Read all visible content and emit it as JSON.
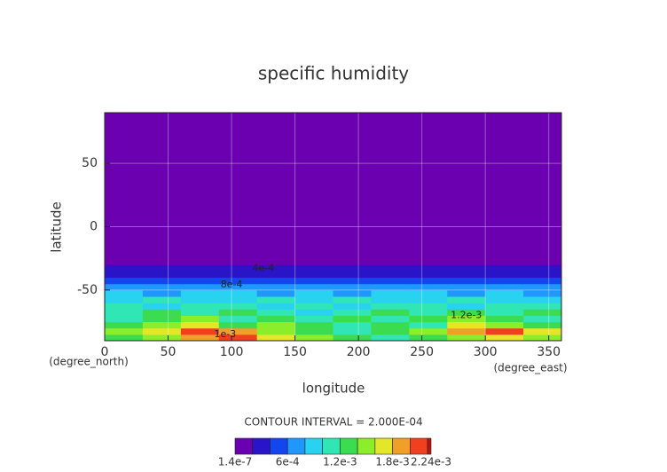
{
  "chart_data": {
    "type": "contour",
    "title": "specific humidity",
    "x_label": "longitude",
    "y_label": "latitude",
    "x_unit": "(degree_east)",
    "y_unit": "(degree_north)",
    "contour_interval_text": "CONTOUR INTERVAL = 2.000E-04",
    "xlim": [
      0,
      360
    ],
    "ylim": [
      -90,
      90
    ],
    "xticks": [
      0,
      50,
      100,
      150,
      200,
      250,
      300,
      350
    ],
    "yticks": [
      -50,
      0,
      50
    ],
    "grid": true,
    "x_edges": [
      0,
      30,
      60,
      90,
      120,
      150,
      180,
      210,
      240,
      270,
      300,
      330,
      360
    ],
    "y_edges": [
      -90,
      -85,
      -80,
      -75,
      -70,
      -65,
      -60,
      -55,
      -50,
      -45,
      -40,
      -35,
      -30,
      -27,
      90
    ],
    "z": [
      [
        0.0012,
        0.0014,
        0.0018,
        0.002,
        0.0016,
        0.0014,
        0.0012,
        0.001,
        0.0012,
        0.0014,
        0.0016,
        0.0014
      ],
      [
        0.0014,
        0.0016,
        0.002,
        0.0018,
        0.0014,
        0.0012,
        0.001,
        0.0012,
        0.0014,
        0.0018,
        0.002,
        0.0016
      ],
      [
        0.0012,
        0.0014,
        0.0016,
        0.0012,
        0.0014,
        0.0012,
        0.001,
        0.0012,
        0.001,
        0.0016,
        0.0014,
        0.0012
      ],
      [
        0.001,
        0.0012,
        0.0014,
        0.001,
        0.0012,
        0.001,
        0.0012,
        0.001,
        0.0012,
        0.0014,
        0.0012,
        0.001
      ],
      [
        0.001,
        0.0012,
        0.001,
        0.0012,
        0.001,
        0.0008,
        0.001,
        0.0012,
        0.001,
        0.0012,
        0.001,
        0.0012
      ],
      [
        0.001,
        0.0008,
        0.001,
        0.001,
        0.0008,
        0.001,
        0.0008,
        0.001,
        0.001,
        0.0008,
        0.001,
        0.001
      ],
      [
        0.0008,
        0.001,
        0.0008,
        0.0008,
        0.001,
        0.0008,
        0.001,
        0.0008,
        0.0008,
        0.001,
        0.0008,
        0.0008
      ],
      [
        0.0008,
        0.0006,
        0.0008,
        0.0008,
        0.0006,
        0.0008,
        0.0006,
        0.0008,
        0.0008,
        0.0006,
        0.0008,
        0.0006
      ],
      [
        0.0006,
        0.0006,
        0.0006,
        0.0006,
        0.0006,
        0.0006,
        0.0006,
        0.0006,
        0.0006,
        0.0006,
        0.0006,
        0.0006
      ],
      [
        0.0005,
        0.0005,
        0.0005,
        0.0005,
        0.0005,
        0.0005,
        0.0005,
        0.0005,
        0.0005,
        0.0005,
        0.0005,
        0.0005
      ],
      [
        0.0003,
        0.0003,
        0.0003,
        0.0003,
        0.0003,
        0.0003,
        0.0003,
        0.0003,
        0.0003,
        0.0003,
        0.0003,
        0.0003
      ],
      [
        0.0002,
        0.0002,
        0.0002,
        0.0002,
        0.0002,
        0.0002,
        0.0002,
        0.0002,
        0.0002,
        0.0002,
        0.0002,
        0.0002
      ],
      [
        0.0001,
        0.0001,
        0.0001,
        0.0001,
        0.0001,
        0.0001,
        0.0001,
        0.0001,
        0.0001,
        0.0001,
        0.0001,
        0.0001
      ],
      [
        1.4e-07,
        1.4e-07,
        1.4e-07,
        1.4e-07,
        1.4e-07,
        1.4e-07,
        1.4e-07,
        1.4e-07,
        1.4e-07,
        1.4e-07,
        1.4e-07,
        1.4e-07
      ]
    ],
    "annotations": [
      {
        "text": "4e-4",
        "x": 125,
        "y": -33
      },
      {
        "text": "8e-4",
        "x": 100,
        "y": -46
      },
      {
        "text": "1.2e-3",
        "x": 285,
        "y": -70
      },
      {
        "text": "1e-3",
        "x": 95,
        "y": -85
      }
    ],
    "colorbar": {
      "levels": [
        1.4e-07,
        0.0002,
        0.0004,
        0.0006,
        0.0008,
        0.001,
        0.0012,
        0.0014,
        0.0016,
        0.0018,
        0.002,
        0.0022,
        0.00224
      ],
      "colors": [
        "#6a00b0",
        "#2a14c8",
        "#1446f0",
        "#2096ff",
        "#28d2f0",
        "#30e6b4",
        "#3cdc50",
        "#8cee2a",
        "#e6e628",
        "#f0a028",
        "#f04020",
        "#c01010"
      ],
      "ticks": [
        {
          "value": 1.4e-07,
          "label": "1.4e-7"
        },
        {
          "value": 0.0006,
          "label": "6e-4"
        },
        {
          "value": 0.0012,
          "label": "1.2e-3"
        },
        {
          "value": 0.0018,
          "label": "1.8e-3"
        },
        {
          "value": 0.00224,
          "label": "2.24e-3"
        }
      ]
    }
  }
}
